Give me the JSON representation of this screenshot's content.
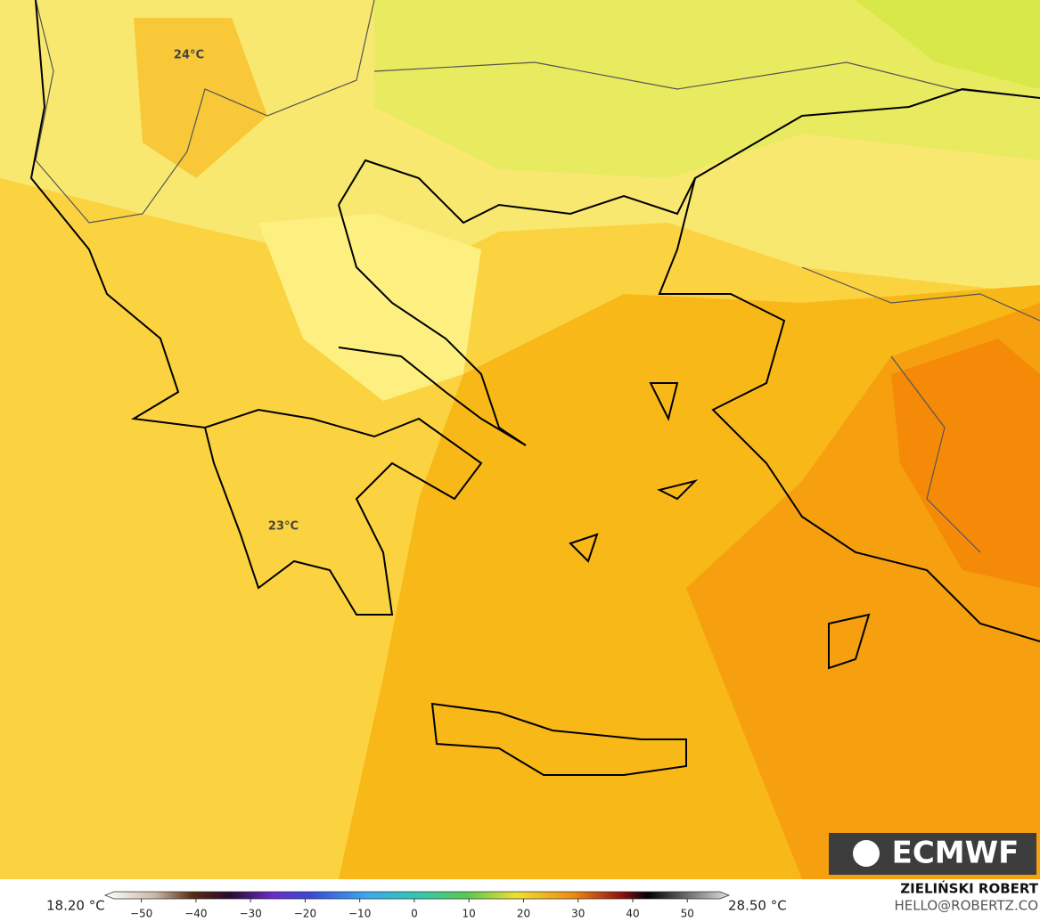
{
  "map": {
    "labels": [
      {
        "text": "24°C"
      },
      {
        "text": "23°C"
      }
    ],
    "logo": "ECMWF",
    "colorbar": {
      "min_label": "18.20 °C",
      "max_label": "28.50 °C",
      "lim": [
        -55,
        56
      ],
      "ticks": [
        {
          "value": -50,
          "label": "−50"
        },
        {
          "value": -40,
          "label": "−40"
        },
        {
          "value": -30,
          "label": "−30"
        },
        {
          "value": -20,
          "label": "−20"
        },
        {
          "value": -10,
          "label": "−10"
        },
        0,
        10,
        20,
        30,
        40,
        50
      ]
    },
    "credit": {
      "name": "ZIELIŃSKI ROBERT",
      "contact": "HELLO@ROBERTZ.CO"
    }
  }
}
